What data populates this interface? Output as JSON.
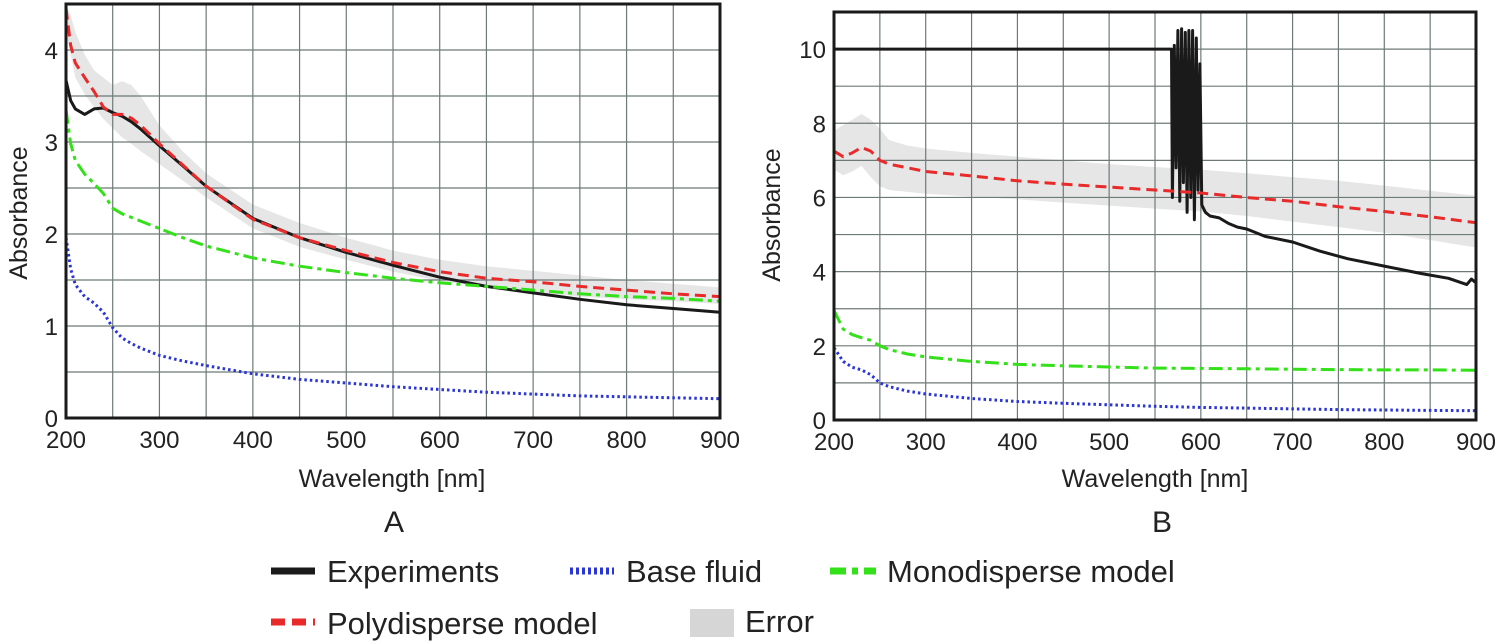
{
  "colors": {
    "experiments": "#1a1a1a",
    "base_fluid": "#2a35d8",
    "monodisperse": "#33e01a",
    "polydisperse": "#e82a2a",
    "error": "#d6d6d6",
    "grid": "#6e7a78"
  },
  "legend": {
    "experiments": "Experiments",
    "base_fluid": "Base fluid",
    "monodisperse": "Monodisperse model",
    "polydisperse": "Polydisperse model",
    "error": "Error"
  },
  "chart_data": [
    {
      "type": "line",
      "panel_label": "A",
      "xlabel": "Wavelength [nm]",
      "ylabel": "Absorbance",
      "xlim": [
        200,
        900
      ],
      "ylim": [
        0,
        4.5
      ],
      "xticks": [
        200,
        300,
        400,
        500,
        600,
        700,
        800,
        900
      ],
      "yticks": [
        0,
        1,
        2,
        3,
        4
      ],
      "grid": true,
      "x": [
        200,
        205,
        210,
        220,
        230,
        240,
        250,
        260,
        270,
        280,
        300,
        325,
        350,
        400,
        450,
        500,
        550,
        600,
        650,
        700,
        750,
        800,
        850,
        900
      ],
      "series": [
        {
          "name": "Experiments",
          "key": "experiments",
          "style": "solid",
          "values": [
            3.67,
            3.45,
            3.36,
            3.3,
            3.36,
            3.37,
            3.32,
            3.28,
            3.22,
            3.14,
            2.96,
            2.74,
            2.52,
            2.17,
            1.96,
            1.8,
            1.66,
            1.53,
            1.43,
            1.36,
            1.29,
            1.23,
            1.19,
            1.15
          ]
        },
        {
          "name": "Base fluid",
          "key": "base_fluid",
          "style": "dotted",
          "values": [
            1.96,
            1.62,
            1.45,
            1.32,
            1.25,
            1.15,
            0.98,
            0.87,
            0.81,
            0.76,
            0.68,
            0.62,
            0.57,
            0.48,
            0.42,
            0.38,
            0.34,
            0.31,
            0.28,
            0.26,
            0.24,
            0.23,
            0.22,
            0.21
          ]
        },
        {
          "name": "Monodisperse model",
          "key": "monodisperse",
          "style": "dashdot",
          "values": [
            3.35,
            2.98,
            2.8,
            2.65,
            2.55,
            2.44,
            2.28,
            2.22,
            2.18,
            2.14,
            2.06,
            1.96,
            1.87,
            1.74,
            1.65,
            1.58,
            1.52,
            1.47,
            1.43,
            1.39,
            1.35,
            1.32,
            1.3,
            1.27
          ]
        },
        {
          "name": "Polydisperse model",
          "key": "polydisperse",
          "style": "dashed",
          "values": [
            4.45,
            4.05,
            3.86,
            3.7,
            3.55,
            3.38,
            3.3,
            3.3,
            3.26,
            3.18,
            2.98,
            2.75,
            2.52,
            2.16,
            1.96,
            1.82,
            1.69,
            1.59,
            1.52,
            1.48,
            1.43,
            1.39,
            1.35,
            1.32
          ]
        }
      ],
      "error_band": {
        "name": "Error",
        "upper": [
          4.5,
          4.38,
          4.2,
          3.95,
          3.78,
          3.7,
          3.62,
          3.66,
          3.62,
          3.5,
          3.18,
          2.9,
          2.66,
          2.32,
          2.12,
          1.96,
          1.82,
          1.72,
          1.65,
          1.6,
          1.55,
          1.5,
          1.46,
          1.42
        ],
        "lower": [
          4.2,
          3.95,
          3.7,
          3.52,
          3.38,
          3.25,
          3.15,
          3.05,
          2.98,
          2.9,
          2.76,
          2.58,
          2.4,
          2.06,
          1.86,
          1.72,
          1.59,
          1.49,
          1.42,
          1.37,
          1.32,
          1.29,
          1.27,
          1.24
        ]
      }
    },
    {
      "type": "line",
      "panel_label": "B",
      "xlabel": "Wavelength [nm]",
      "ylabel": "Absorbance",
      "xlim": [
        200,
        900
      ],
      "ylim": [
        0,
        11
      ],
      "xticks": [
        200,
        300,
        400,
        500,
        600,
        700,
        800,
        900
      ],
      "yticks": [
        0,
        2,
        4,
        6,
        8,
        10
      ],
      "grid": true,
      "x": [
        200,
        210,
        220,
        230,
        240,
        250,
        260,
        280,
        300,
        350,
        400,
        450,
        500,
        550,
        600,
        650,
        700,
        750,
        800,
        850,
        900
      ],
      "series": [
        {
          "name": "Experiments",
          "key": "experiments",
          "style": "solid",
          "x": [
            200,
            568,
            569,
            571,
            573,
            575,
            577,
            579,
            581,
            583,
            585,
            587,
            589,
            591,
            593,
            595,
            597,
            599,
            601,
            605,
            610,
            620,
            630,
            640,
            650,
            670,
            700,
            730,
            760,
            800,
            840,
            870,
            890,
            895,
            900
          ],
          "values": [
            10.0,
            10.0,
            6.0,
            10.1,
            6.8,
            10.5,
            5.9,
            10.55,
            6.4,
            10.45,
            5.6,
            10.5,
            6.0,
            10.5,
            5.4,
            10.3,
            6.2,
            9.6,
            5.8,
            5.6,
            5.5,
            5.45,
            5.3,
            5.2,
            5.15,
            4.95,
            4.8,
            4.55,
            4.35,
            4.15,
            3.95,
            3.82,
            3.65,
            3.8,
            3.7
          ]
        },
        {
          "name": "Base fluid",
          "key": "base_fluid",
          "style": "dotted",
          "values": [
            1.95,
            1.58,
            1.42,
            1.35,
            1.22,
            1.0,
            0.9,
            0.78,
            0.7,
            0.58,
            0.5,
            0.45,
            0.41,
            0.37,
            0.34,
            0.32,
            0.3,
            0.28,
            0.27,
            0.26,
            0.25
          ]
        },
        {
          "name": "Monodisperse model",
          "key": "monodisperse",
          "style": "dashdot",
          "values": [
            2.95,
            2.45,
            2.3,
            2.22,
            2.15,
            2.0,
            1.9,
            1.78,
            1.7,
            1.58,
            1.5,
            1.46,
            1.43,
            1.4,
            1.39,
            1.38,
            1.37,
            1.36,
            1.35,
            1.35,
            1.34
          ]
        },
        {
          "name": "Polydisperse model",
          "key": "polydisperse",
          "style": "dashed",
          "values": [
            7.25,
            7.1,
            7.2,
            7.35,
            7.25,
            7.0,
            6.9,
            6.8,
            6.7,
            6.58,
            6.45,
            6.36,
            6.28,
            6.2,
            6.12,
            6.0,
            5.9,
            5.75,
            5.62,
            5.48,
            5.32
          ]
        }
      ],
      "error_band": {
        "name": "Error",
        "upper": [
          7.8,
          7.95,
          8.1,
          8.25,
          8.1,
          7.85,
          7.55,
          7.4,
          7.32,
          7.2,
          7.1,
          7.0,
          6.9,
          6.82,
          6.75,
          6.65,
          6.55,
          6.45,
          6.32,
          6.18,
          6.05
        ],
        "lower": [
          6.75,
          6.6,
          6.7,
          6.85,
          6.55,
          6.3,
          6.2,
          6.15,
          6.1,
          6.02,
          5.95,
          5.86,
          5.78,
          5.7,
          5.62,
          5.5,
          5.35,
          5.2,
          5.05,
          4.85,
          4.65
        ]
      }
    }
  ]
}
